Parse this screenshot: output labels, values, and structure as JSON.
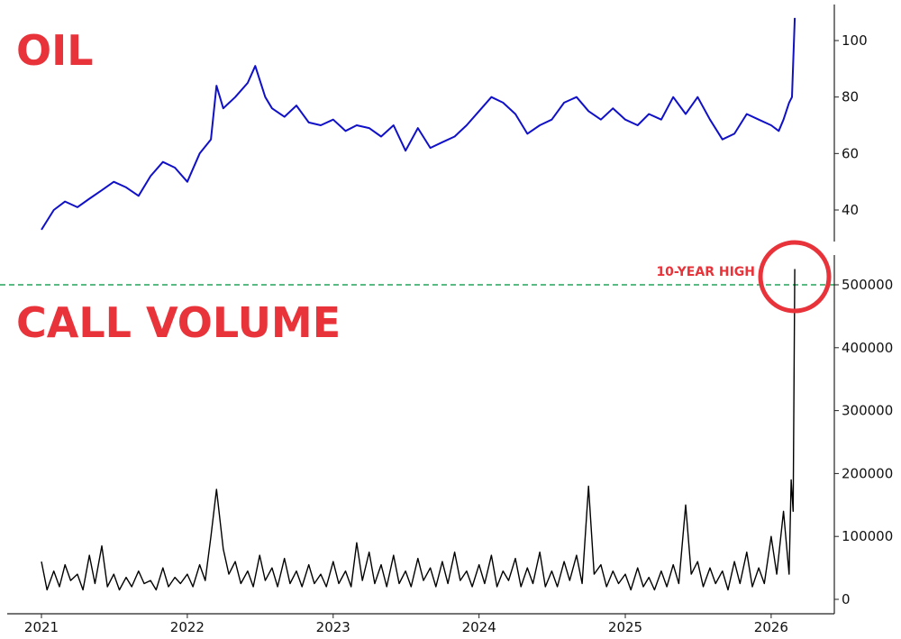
{
  "chart_data": [
    {
      "type": "line",
      "title": "OIL",
      "color": "#1010c8",
      "ylim": [
        30,
        110
      ],
      "yticks": [
        40,
        60,
        80,
        100
      ],
      "points": [
        [
          "2021-01-01",
          33
        ],
        [
          "2021-02-01",
          40
        ],
        [
          "2021-03-01",
          43
        ],
        [
          "2021-04-01",
          41
        ],
        [
          "2021-05-01",
          44
        ],
        [
          "2021-06-01",
          47
        ],
        [
          "2021-07-01",
          50
        ],
        [
          "2021-08-01",
          48
        ],
        [
          "2021-09-01",
          45
        ],
        [
          "2021-10-01",
          52
        ],
        [
          "2021-11-01",
          57
        ],
        [
          "2021-12-01",
          55
        ],
        [
          "2022-01-01",
          50
        ],
        [
          "2022-02-01",
          60
        ],
        [
          "2022-03-01",
          65
        ],
        [
          "2022-03-15",
          84
        ],
        [
          "2022-04-01",
          76
        ],
        [
          "2022-05-01",
          80
        ],
        [
          "2022-06-01",
          85
        ],
        [
          "2022-06-20",
          91
        ],
        [
          "2022-07-15",
          80
        ],
        [
          "2022-08-01",
          76
        ],
        [
          "2022-09-01",
          73
        ],
        [
          "2022-10-01",
          77
        ],
        [
          "2022-11-01",
          71
        ],
        [
          "2022-12-01",
          70
        ],
        [
          "2023-01-01",
          72
        ],
        [
          "2023-02-01",
          68
        ],
        [
          "2023-03-01",
          70
        ],
        [
          "2023-04-01",
          69
        ],
        [
          "2023-05-01",
          66
        ],
        [
          "2023-06-01",
          70
        ],
        [
          "2023-07-01",
          61
        ],
        [
          "2023-08-01",
          69
        ],
        [
          "2023-09-01",
          62
        ],
        [
          "2023-10-01",
          64
        ],
        [
          "2023-11-01",
          66
        ],
        [
          "2023-12-01",
          70
        ],
        [
          "2024-01-01",
          75
        ],
        [
          "2024-02-01",
          80
        ],
        [
          "2024-03-01",
          78
        ],
        [
          "2024-04-01",
          74
        ],
        [
          "2024-05-01",
          67
        ],
        [
          "2024-06-01",
          70
        ],
        [
          "2024-07-01",
          72
        ],
        [
          "2024-08-01",
          78
        ],
        [
          "2024-09-01",
          80
        ],
        [
          "2024-10-01",
          75
        ],
        [
          "2024-11-01",
          72
        ],
        [
          "2024-12-01",
          76
        ],
        [
          "2025-01-01",
          72
        ],
        [
          "2025-02-01",
          70
        ],
        [
          "2025-03-01",
          74
        ],
        [
          "2025-04-01",
          72
        ],
        [
          "2025-05-01",
          80
        ],
        [
          "2025-06-01",
          74
        ],
        [
          "2025-07-01",
          80
        ],
        [
          "2025-08-01",
          72
        ],
        [
          "2025-09-01",
          65
        ],
        [
          "2025-10-01",
          67
        ],
        [
          "2025-11-01",
          74
        ],
        [
          "2025-12-01",
          72
        ],
        [
          "2026-01-01",
          70
        ],
        [
          "2026-01-20",
          68
        ],
        [
          "2026-02-01",
          72
        ],
        [
          "2026-02-15",
          78
        ],
        [
          "2026-02-22",
          80
        ],
        [
          "2026-03-01",
          108
        ]
      ]
    },
    {
      "type": "line",
      "title": "CALL VOLUME",
      "color": "#000000",
      "ylim": [
        -20000,
        560000
      ],
      "yticks": [
        0,
        100000,
        200000,
        300000,
        400000,
        500000
      ],
      "xticks": [
        "2021",
        "2022",
        "2023",
        "2024",
        "2025",
        "2026"
      ],
      "reference_line": {
        "value": 500000,
        "color": "#22a35a",
        "style": "dashed"
      },
      "annotation": {
        "text": "10-YEAR HIGH",
        "color": "#e8333a"
      },
      "points_semi_monthly": [
        60000,
        15000,
        45000,
        20000,
        55000,
        30000,
        40000,
        15000,
        70000,
        25000,
        85000,
        20000,
        40000,
        15000,
        35000,
        20000,
        45000,
        25000,
        30000,
        15000,
        50000,
        20000,
        35000,
        25000,
        40000,
        20000,
        55000,
        30000,
        100000,
        175000,
        80000,
        40000,
        60000,
        25000,
        45000,
        20000,
        70000,
        30000,
        50000,
        20000,
        65000,
        25000,
        45000,
        20000,
        55000,
        25000,
        40000,
        20000,
        60000,
        25000,
        45000,
        20000,
        90000,
        30000,
        75000,
        25000,
        55000,
        20000,
        70000,
        25000,
        45000,
        20000,
        65000,
        30000,
        50000,
        20000,
        60000,
        25000,
        75000,
        30000,
        45000,
        20000,
        55000,
        25000,
        70000,
        20000,
        45000,
        30000,
        65000,
        20000,
        50000,
        25000,
        75000,
        20000,
        45000,
        20000,
        60000,
        30000,
        70000,
        25000,
        180000,
        40000,
        55000,
        20000,
        45000,
        25000,
        40000,
        15000,
        50000,
        20000,
        35000,
        15000,
        45000,
        20000,
        55000,
        25000,
        150000,
        40000,
        60000,
        20000,
        50000,
        25000,
        45000,
        15000,
        60000,
        25000,
        75000,
        20000,
        50000,
        25000,
        100000,
        40000,
        140000,
        40000
      ],
      "points_end": [
        [
          "2026-02-20",
          190000
        ],
        [
          "2026-02-25",
          140000
        ],
        [
          "2026-03-01",
          525000
        ]
      ]
    }
  ]
}
